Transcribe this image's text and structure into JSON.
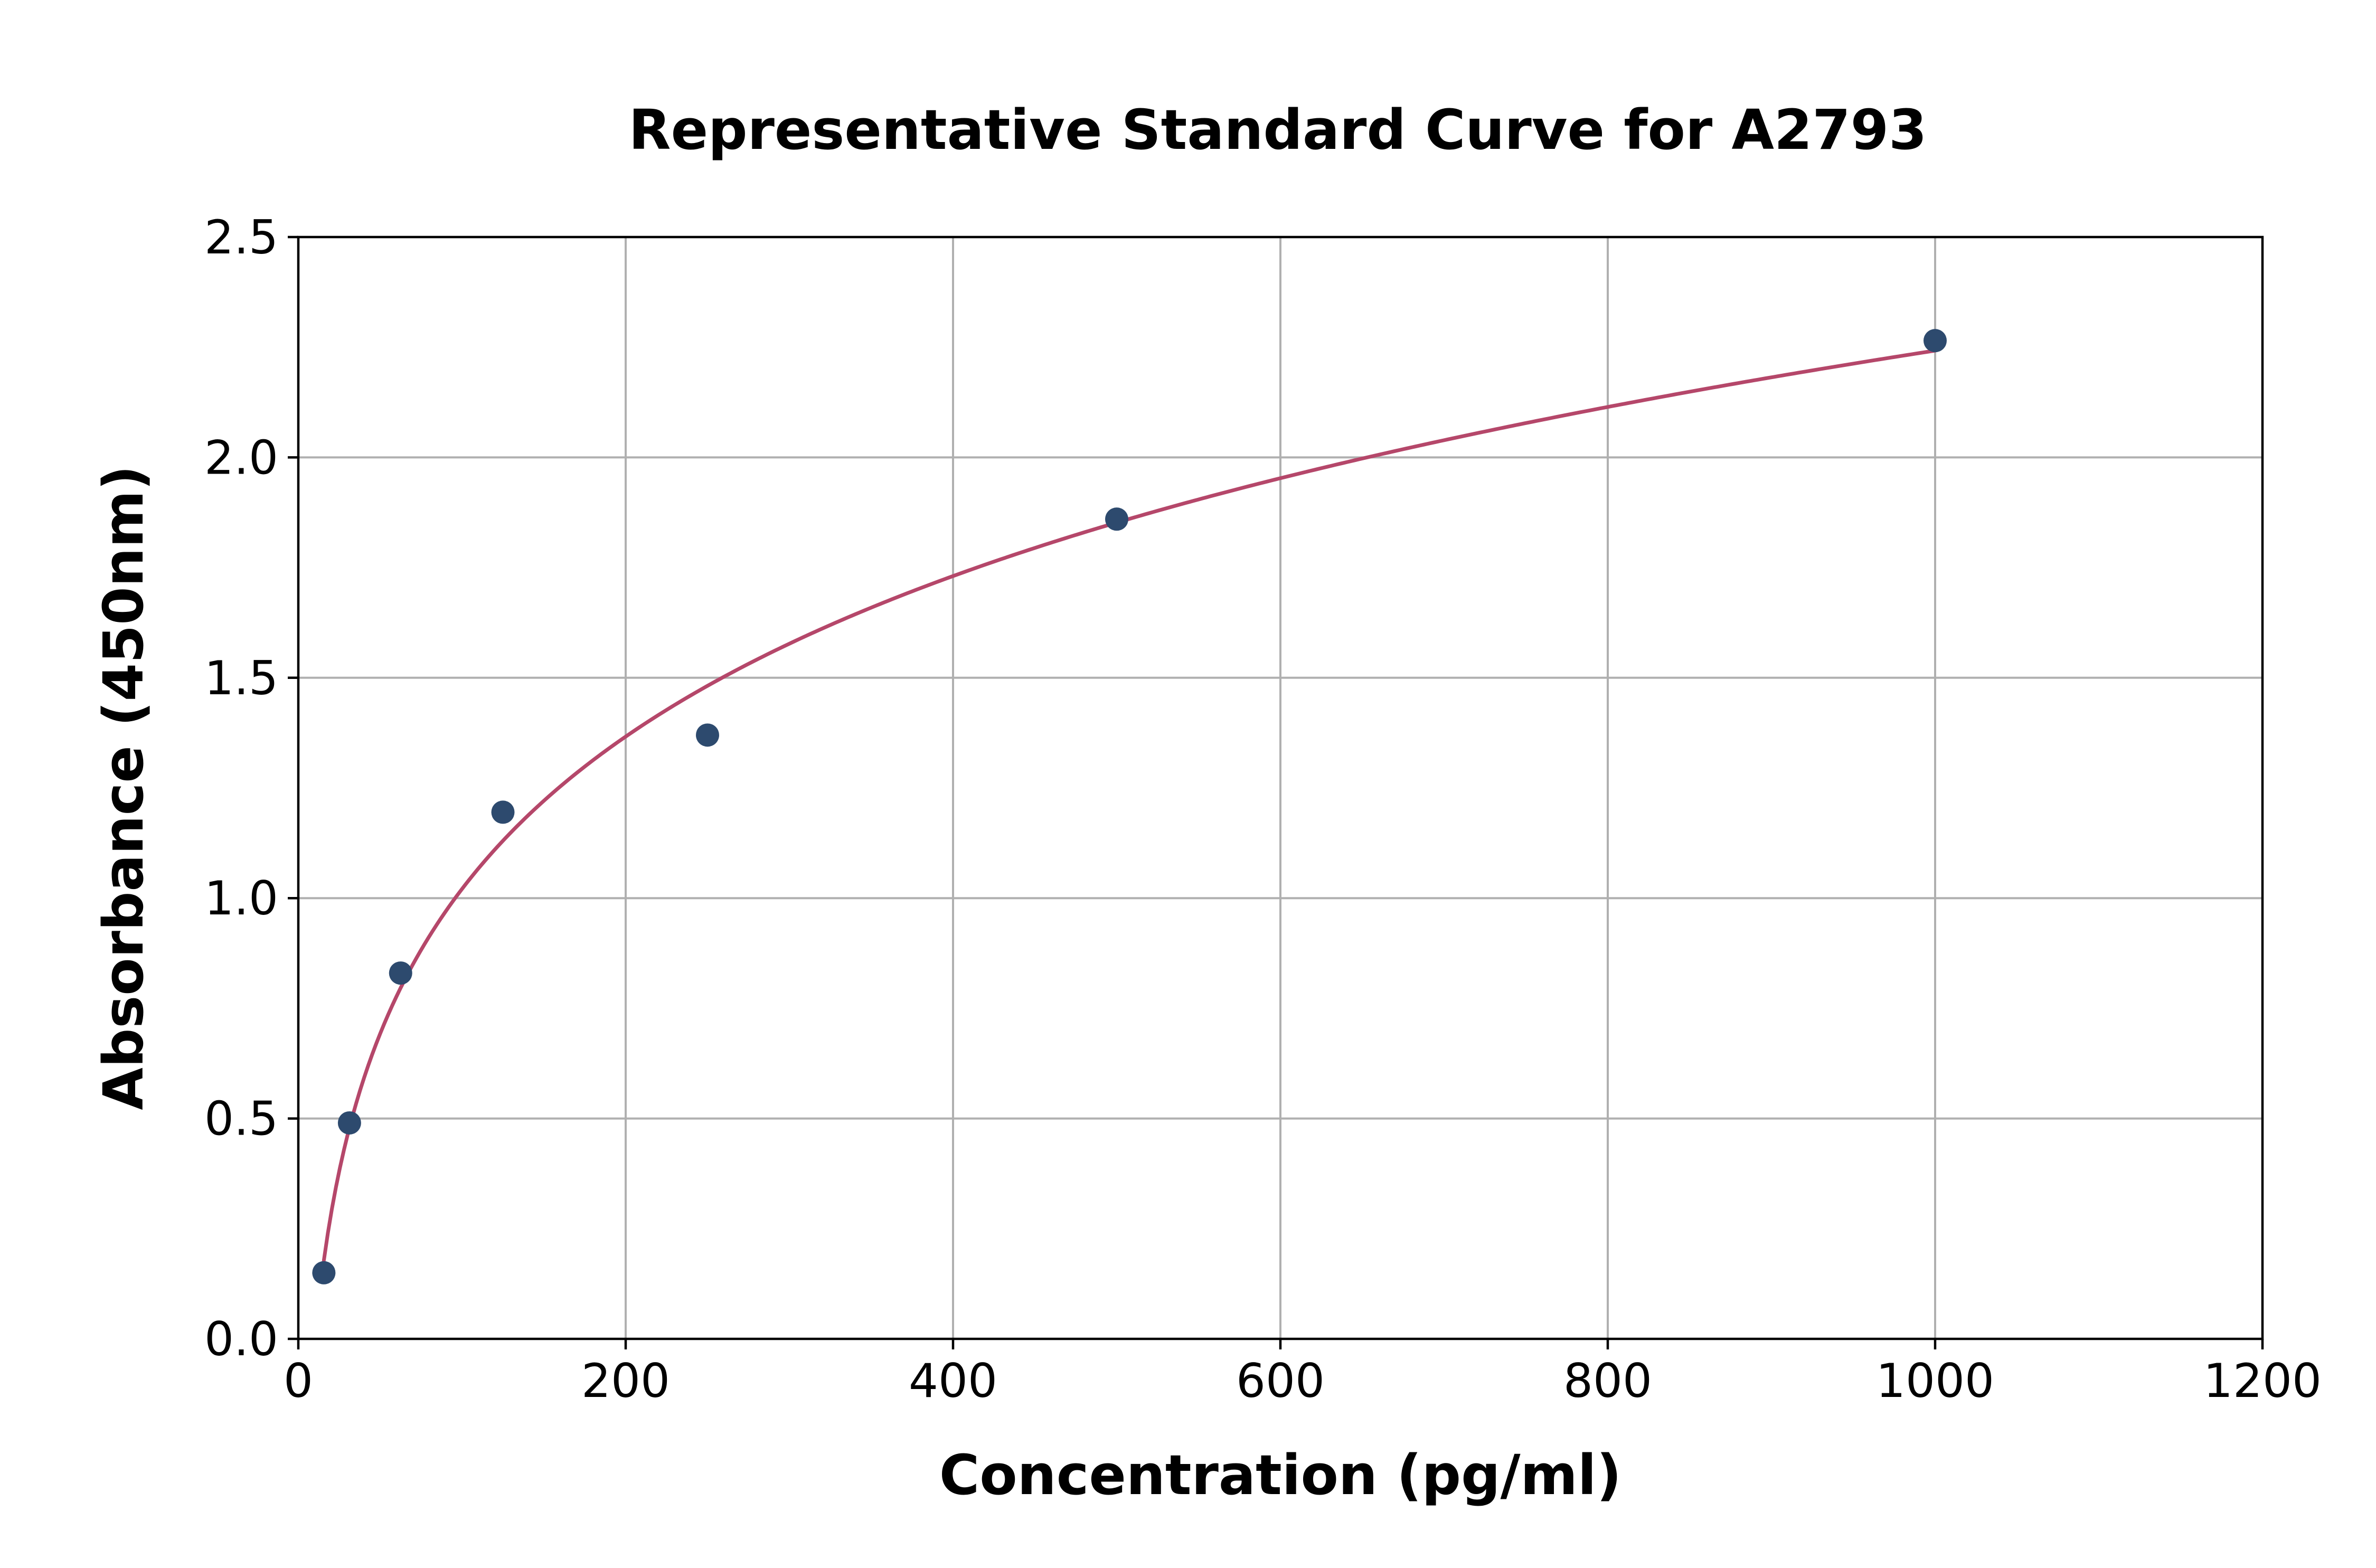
{
  "chart_data": {
    "type": "scatter",
    "title": "Representative Standard Curve for A2793",
    "xlabel": "Concentration (pg/ml)",
    "ylabel": "Absorbance (450nm)",
    "xlim": [
      0,
      1200
    ],
    "ylim": [
      0,
      2.5
    ],
    "xticks": [
      "0",
      "200",
      "400",
      "600",
      "800",
      "1000",
      "1200"
    ],
    "yticks": [
      "0.0",
      "0.5",
      "1.0",
      "1.5",
      "2.0",
      "2.5"
    ],
    "grid": true,
    "points": [
      {
        "x": 15.6,
        "y": 0.15
      },
      {
        "x": 31.25,
        "y": 0.49
      },
      {
        "x": 62.5,
        "y": 0.83
      },
      {
        "x": 125,
        "y": 1.195
      },
      {
        "x": 250,
        "y": 1.37
      },
      {
        "x": 500,
        "y": 1.86
      },
      {
        "x": 1000,
        "y": 2.265
      }
    ],
    "fit_curve_range": [
      15.6,
      1000
    ],
    "colors": {
      "points": "#2d4a6e",
      "curve": "#b5476a"
    }
  }
}
